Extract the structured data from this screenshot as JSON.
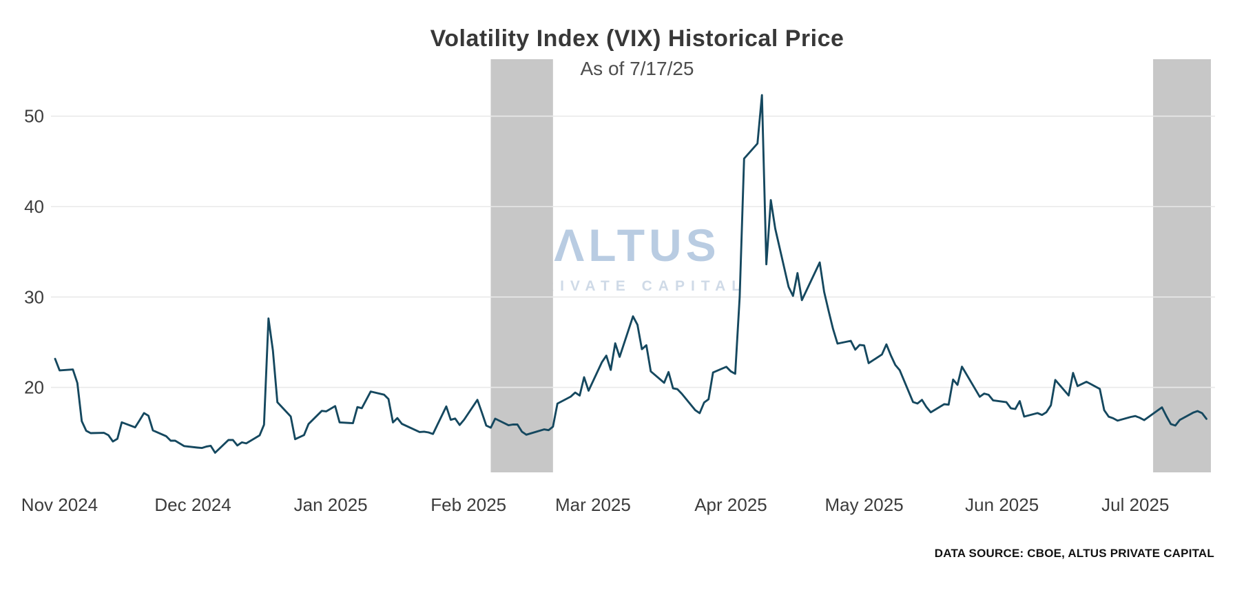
{
  "page": {
    "watermark": {
      "line1": "ΛLTUS",
      "line2": "PRIVATE CAPITAL"
    },
    "data_source": "DATA SOURCE: CBOE, ALTUS PRIVATE CAPITAL"
  },
  "chart_data": {
    "type": "line",
    "title": "Volatility Index (VIX) Historical Price",
    "subtitle": "As of 7/17/25",
    "legend": "none",
    "grid": "horizontal-only",
    "x_domain": [
      "2024-10-31",
      "2025-07-18"
    ],
    "ylim": [
      10.6,
      56.3
    ],
    "y_ticks": [
      20,
      30,
      40,
      50
    ],
    "x_ticks": [
      {
        "date": "2024-11-01",
        "label": "Nov 2024"
      },
      {
        "date": "2024-12-01",
        "label": "Dec 2024"
      },
      {
        "date": "2025-01-01",
        "label": "Jan 2025"
      },
      {
        "date": "2025-02-01",
        "label": "Feb 2025"
      },
      {
        "date": "2025-03-01",
        "label": "Mar 2025"
      },
      {
        "date": "2025-04-01",
        "label": "Apr 2025"
      },
      {
        "date": "2025-05-01",
        "label": "May 2025"
      },
      {
        "date": "2025-06-01",
        "label": "Jun 2025"
      },
      {
        "date": "2025-07-01",
        "label": "Jul 2025"
      }
    ],
    "shaded_regions": [
      {
        "start": "2025-02-06",
        "end": "2025-02-20",
        "color": "#c7c7c7"
      },
      {
        "start": "2025-07-05",
        "end": "2025-07-18",
        "color": "#c7c7c7"
      }
    ],
    "colors": {
      "line": "#15485f",
      "grid": "#e9e9e9",
      "band": "#c7c7c7",
      "axis_text": "#3c3c3c"
    },
    "series": [
      {
        "name": "VIX",
        "color": "#15485f",
        "points": [
          [
            "2024-10-31",
            23.16
          ],
          [
            "2024-11-01",
            21.88
          ],
          [
            "2024-11-04",
            21.98
          ],
          [
            "2024-11-05",
            20.49
          ],
          [
            "2024-11-06",
            16.27
          ],
          [
            "2024-11-07",
            15.2
          ],
          [
            "2024-11-08",
            14.94
          ],
          [
            "2024-11-11",
            14.97
          ],
          [
            "2024-11-12",
            14.71
          ],
          [
            "2024-11-13",
            14.02
          ],
          [
            "2024-11-14",
            14.31
          ],
          [
            "2024-11-15",
            16.14
          ],
          [
            "2024-11-18",
            15.58
          ],
          [
            "2024-11-19",
            16.35
          ],
          [
            "2024-11-20",
            17.16
          ],
          [
            "2024-11-21",
            16.87
          ],
          [
            "2024-11-22",
            15.24
          ],
          [
            "2024-11-25",
            14.6
          ],
          [
            "2024-11-26",
            14.1
          ],
          [
            "2024-11-27",
            14.1
          ],
          [
            "2024-11-29",
            13.51
          ],
          [
            "2024-12-02",
            13.34
          ],
          [
            "2024-12-03",
            13.3
          ],
          [
            "2024-12-04",
            13.45
          ],
          [
            "2024-12-05",
            13.54
          ],
          [
            "2024-12-06",
            12.77
          ],
          [
            "2024-12-09",
            14.19
          ],
          [
            "2024-12-10",
            14.18
          ],
          [
            "2024-12-11",
            13.58
          ],
          [
            "2024-12-12",
            13.92
          ],
          [
            "2024-12-13",
            13.81
          ],
          [
            "2024-12-16",
            14.69
          ],
          [
            "2024-12-17",
            15.87
          ],
          [
            "2024-12-18",
            27.62
          ],
          [
            "2024-12-19",
            24.09
          ],
          [
            "2024-12-20",
            18.36
          ],
          [
            "2024-12-23",
            16.78
          ],
          [
            "2024-12-24",
            14.27
          ],
          [
            "2024-12-26",
            14.73
          ],
          [
            "2024-12-27",
            15.95
          ],
          [
            "2024-12-30",
            17.4
          ],
          [
            "2024-12-31",
            17.35
          ],
          [
            "2025-01-02",
            17.93
          ],
          [
            "2025-01-03",
            16.13
          ],
          [
            "2025-01-06",
            16.04
          ],
          [
            "2025-01-07",
            17.82
          ],
          [
            "2025-01-08",
            17.7
          ],
          [
            "2025-01-10",
            19.54
          ],
          [
            "2025-01-13",
            19.19
          ],
          [
            "2025-01-14",
            18.71
          ],
          [
            "2025-01-15",
            16.12
          ],
          [
            "2025-01-16",
            16.6
          ],
          [
            "2025-01-17",
            15.97
          ],
          [
            "2025-01-21",
            15.06
          ],
          [
            "2025-01-22",
            15.1
          ],
          [
            "2025-01-23",
            15.02
          ],
          [
            "2025-01-24",
            14.85
          ],
          [
            "2025-01-27",
            17.9
          ],
          [
            "2025-01-28",
            16.41
          ],
          [
            "2025-01-29",
            16.56
          ],
          [
            "2025-01-30",
            15.84
          ],
          [
            "2025-01-31",
            16.43
          ],
          [
            "2025-02-03",
            18.62
          ],
          [
            "2025-02-04",
            17.21
          ],
          [
            "2025-02-05",
            15.77
          ],
          [
            "2025-02-06",
            15.54
          ],
          [
            "2025-02-07",
            16.54
          ],
          [
            "2025-02-10",
            15.81
          ],
          [
            "2025-02-11",
            15.89
          ],
          [
            "2025-02-12",
            15.89
          ],
          [
            "2025-02-13",
            15.1
          ],
          [
            "2025-02-14",
            14.77
          ],
          [
            "2025-02-18",
            15.35
          ],
          [
            "2025-02-19",
            15.27
          ],
          [
            "2025-02-20",
            15.66
          ],
          [
            "2025-02-21",
            18.21
          ],
          [
            "2025-02-24",
            18.98
          ],
          [
            "2025-02-25",
            19.43
          ],
          [
            "2025-02-26",
            19.1
          ],
          [
            "2025-02-27",
            21.13
          ],
          [
            "2025-02-28",
            19.63
          ],
          [
            "2025-03-03",
            22.78
          ],
          [
            "2025-03-04",
            23.51
          ],
          [
            "2025-03-05",
            21.93
          ],
          [
            "2025-03-06",
            24.87
          ],
          [
            "2025-03-07",
            23.37
          ],
          [
            "2025-03-10",
            27.86
          ],
          [
            "2025-03-11",
            26.92
          ],
          [
            "2025-03-12",
            24.23
          ],
          [
            "2025-03-13",
            24.66
          ],
          [
            "2025-03-14",
            21.77
          ],
          [
            "2025-03-17",
            20.51
          ],
          [
            "2025-03-18",
            21.7
          ],
          [
            "2025-03-19",
            19.9
          ],
          [
            "2025-03-20",
            19.8
          ],
          [
            "2025-03-21",
            19.28
          ],
          [
            "2025-03-24",
            17.48
          ],
          [
            "2025-03-25",
            17.15
          ],
          [
            "2025-03-26",
            18.33
          ],
          [
            "2025-03-27",
            18.69
          ],
          [
            "2025-03-28",
            21.65
          ],
          [
            "2025-03-31",
            22.28
          ],
          [
            "2025-04-01",
            21.77
          ],
          [
            "2025-04-02",
            21.51
          ],
          [
            "2025-04-03",
            30.02
          ],
          [
            "2025-04-04",
            45.31
          ],
          [
            "2025-04-07",
            46.98
          ],
          [
            "2025-04-08",
            52.33
          ],
          [
            "2025-04-09",
            33.62
          ],
          [
            "2025-04-10",
            40.72
          ],
          [
            "2025-04-11",
            37.56
          ],
          [
            "2025-04-14",
            31.12
          ],
          [
            "2025-04-15",
            30.12
          ],
          [
            "2025-04-16",
            32.64
          ],
          [
            "2025-04-17",
            29.65
          ],
          [
            "2025-04-21",
            33.82
          ],
          [
            "2025-04-22",
            30.57
          ],
          [
            "2025-04-23",
            28.45
          ],
          [
            "2025-04-24",
            26.47
          ],
          [
            "2025-04-25",
            24.84
          ],
          [
            "2025-04-28",
            25.15
          ],
          [
            "2025-04-29",
            24.17
          ],
          [
            "2025-04-30",
            24.7
          ],
          [
            "2025-05-01",
            24.64
          ],
          [
            "2025-05-02",
            22.68
          ],
          [
            "2025-05-05",
            23.64
          ],
          [
            "2025-05-06",
            24.76
          ],
          [
            "2025-05-07",
            23.55
          ],
          [
            "2025-05-08",
            22.48
          ],
          [
            "2025-05-09",
            21.9
          ],
          [
            "2025-05-12",
            18.38
          ],
          [
            "2025-05-13",
            18.22
          ],
          [
            "2025-05-14",
            18.62
          ],
          [
            "2025-05-15",
            17.83
          ],
          [
            "2025-05-16",
            17.24
          ],
          [
            "2025-05-19",
            18.14
          ],
          [
            "2025-05-20",
            18.09
          ],
          [
            "2025-05-21",
            20.87
          ],
          [
            "2025-05-22",
            20.28
          ],
          [
            "2025-05-23",
            22.29
          ],
          [
            "2025-05-27",
            18.96
          ],
          [
            "2025-05-28",
            19.31
          ],
          [
            "2025-05-29",
            19.18
          ],
          [
            "2025-05-30",
            18.57
          ],
          [
            "2025-06-02",
            18.36
          ],
          [
            "2025-06-03",
            17.69
          ],
          [
            "2025-06-04",
            17.61
          ],
          [
            "2025-06-05",
            18.48
          ],
          [
            "2025-06-06",
            16.77
          ],
          [
            "2025-06-09",
            17.16
          ],
          [
            "2025-06-10",
            16.95
          ],
          [
            "2025-06-11",
            17.26
          ],
          [
            "2025-06-12",
            18.02
          ],
          [
            "2025-06-13",
            20.82
          ],
          [
            "2025-06-16",
            19.11
          ],
          [
            "2025-06-17",
            21.6
          ],
          [
            "2025-06-18",
            20.14
          ],
          [
            "2025-06-20",
            20.62
          ],
          [
            "2025-06-23",
            19.83
          ],
          [
            "2025-06-24",
            17.48
          ],
          [
            "2025-06-25",
            16.76
          ],
          [
            "2025-06-26",
            16.59
          ],
          [
            "2025-06-27",
            16.32
          ],
          [
            "2025-06-30",
            16.73
          ],
          [
            "2025-07-01",
            16.83
          ],
          [
            "2025-07-02",
            16.64
          ],
          [
            "2025-07-03",
            16.38
          ],
          [
            "2025-07-07",
            17.79
          ],
          [
            "2025-07-08",
            16.81
          ],
          [
            "2025-07-09",
            15.94
          ],
          [
            "2025-07-10",
            15.78
          ],
          [
            "2025-07-11",
            16.4
          ],
          [
            "2025-07-14",
            17.2
          ],
          [
            "2025-07-15",
            17.38
          ],
          [
            "2025-07-16",
            17.16
          ],
          [
            "2025-07-17",
            16.52
          ]
        ]
      }
    ]
  }
}
